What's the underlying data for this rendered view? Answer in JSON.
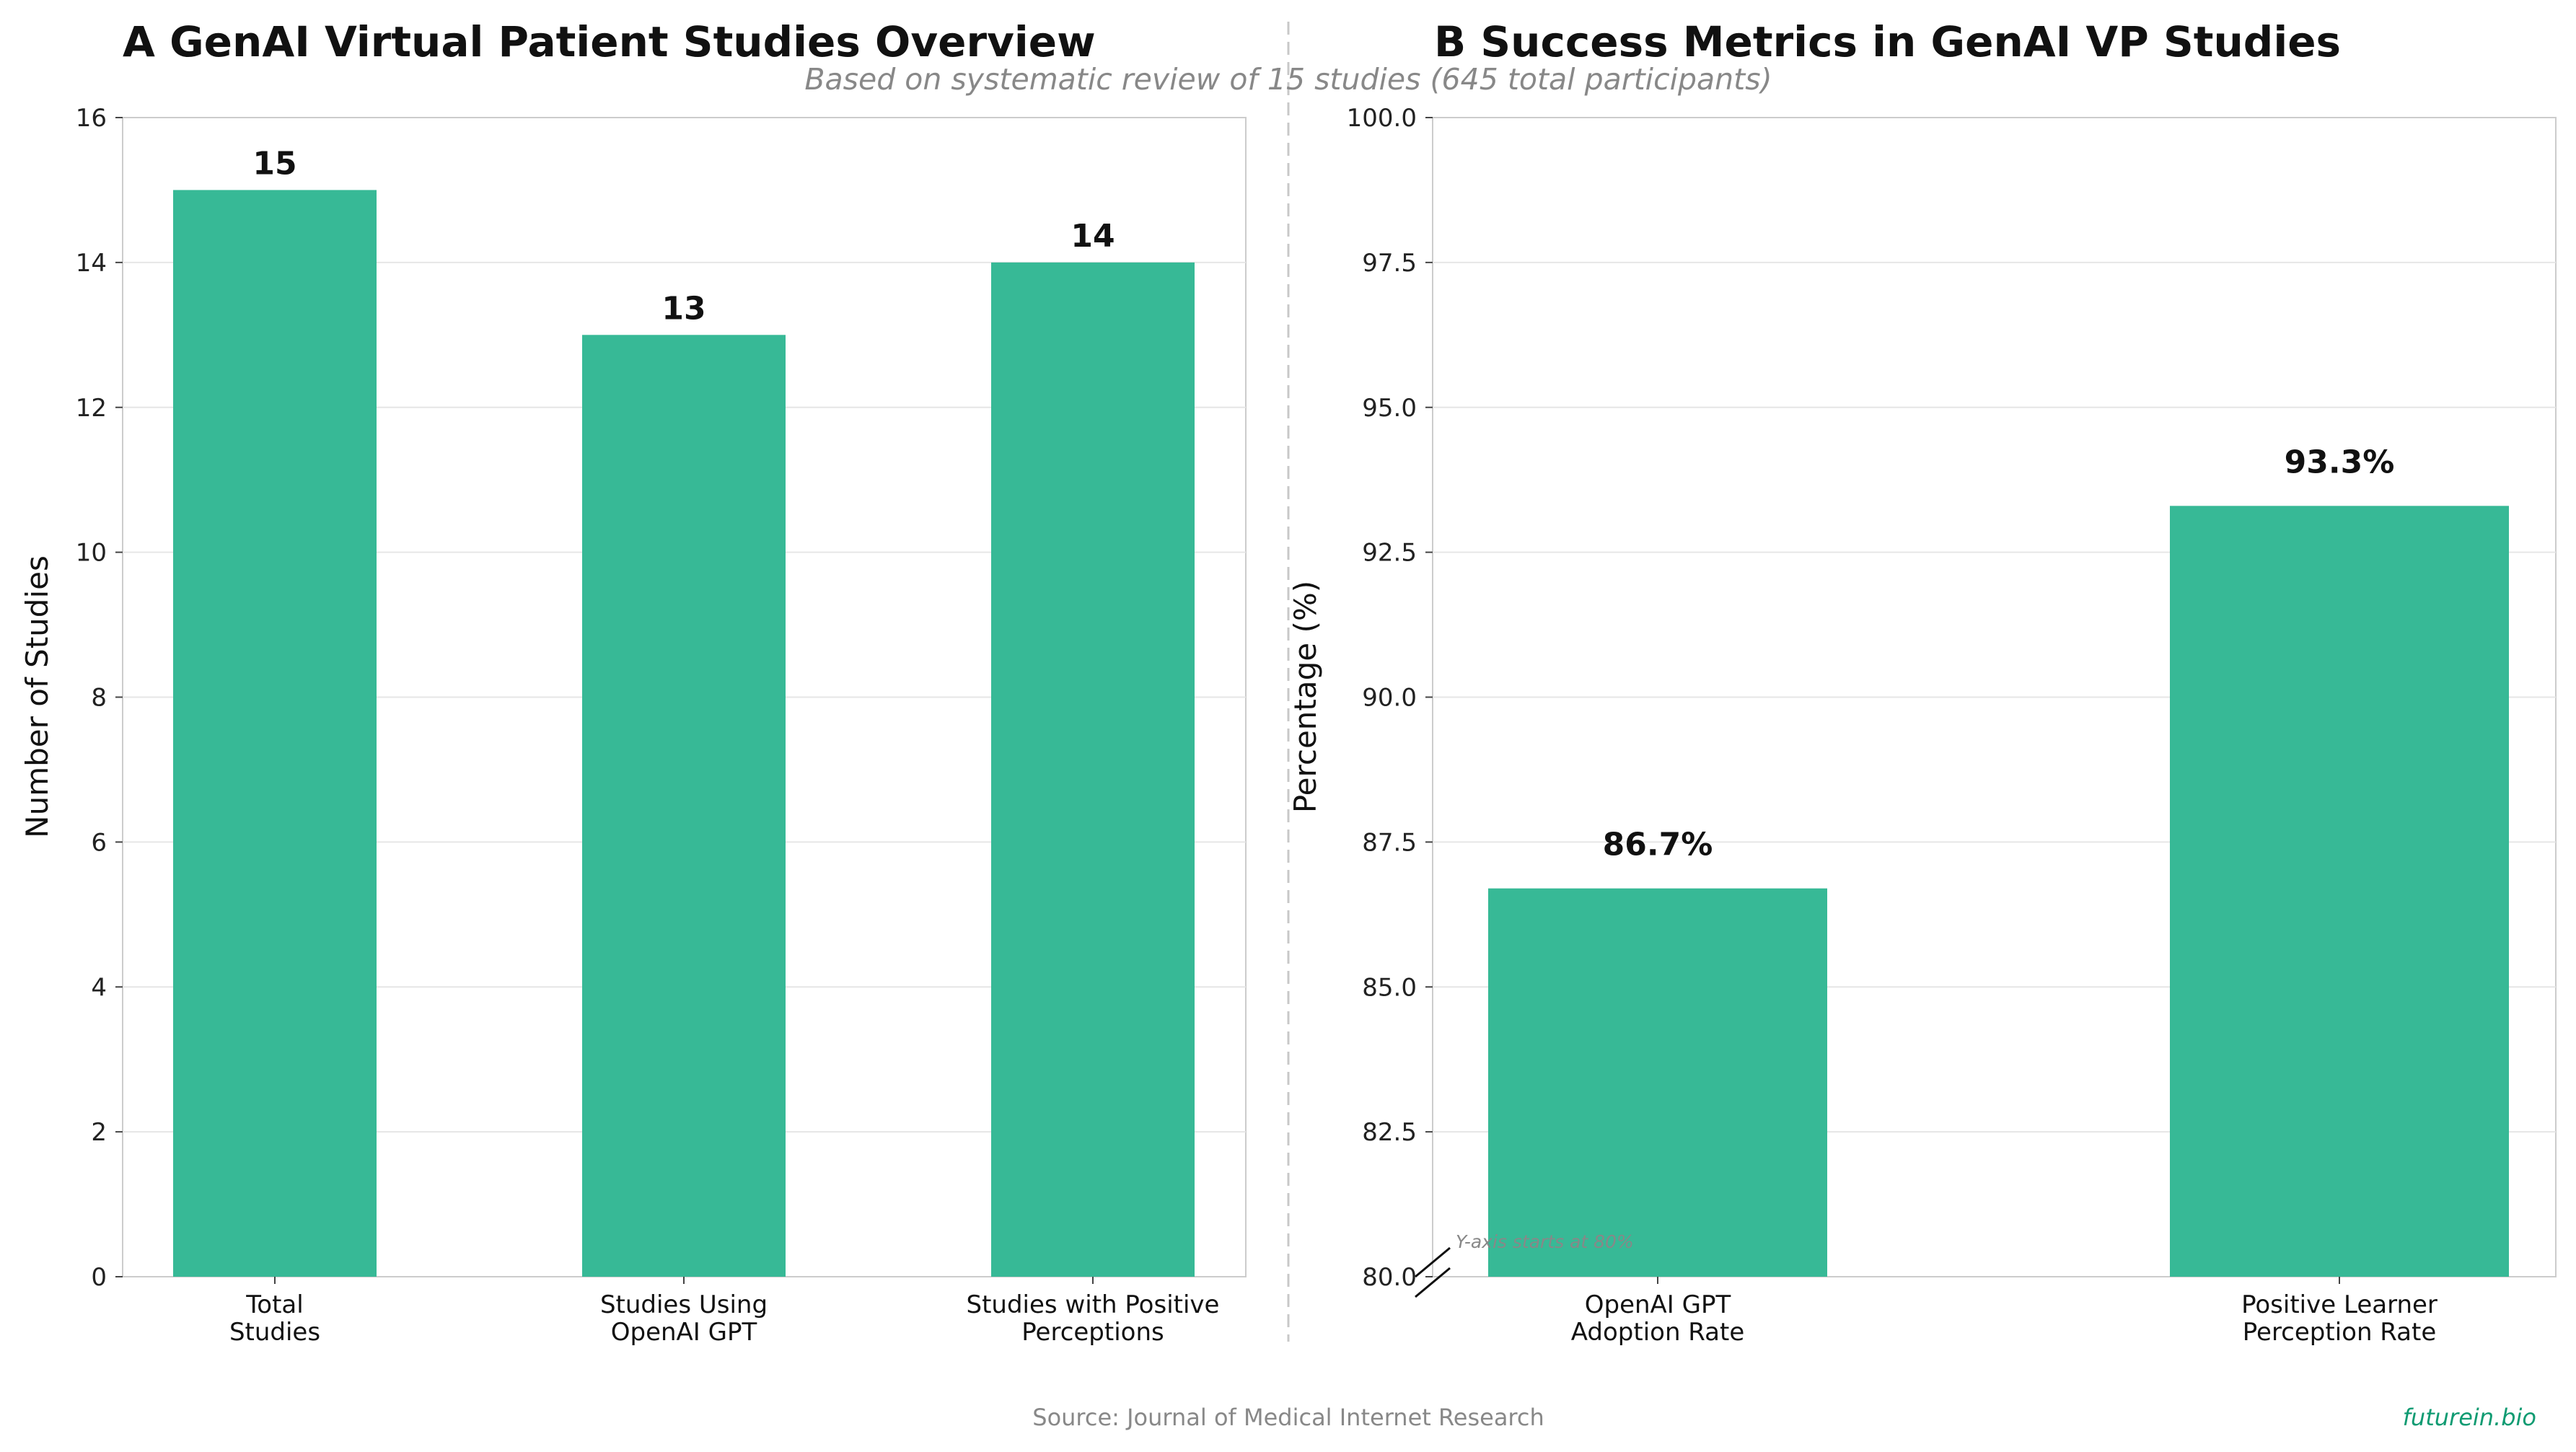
{
  "subtitle": "Based on systematic review of 15 studies (645 total participants)",
  "source": "Source: Journal of Medical Internet Research",
  "brand": "futurein.bio",
  "colors": {
    "bar": "#37b996",
    "brand": "#0f9b72",
    "grid": "#e6e6e6",
    "spine": "#cccccc"
  },
  "chart_data": [
    {
      "type": "bar",
      "panel": "A",
      "title": "A  GenAI Virtual Patient Studies Overview",
      "categories": [
        [
          "Total",
          "Studies"
        ],
        [
          "Studies Using",
          "OpenAI GPT"
        ],
        [
          "Studies with Positive",
          "Perceptions"
        ]
      ],
      "values": [
        15,
        13,
        14
      ],
      "value_labels": [
        "15",
        "13",
        "14"
      ],
      "xlabel": "",
      "ylabel": "Number of Studies",
      "ylim": [
        0,
        16
      ],
      "yticks": [
        0,
        2,
        4,
        6,
        8,
        10,
        12,
        14,
        16
      ],
      "ytick_labels": [
        "0",
        "2",
        "4",
        "6",
        "8",
        "10",
        "12",
        "14",
        "16"
      ],
      "grid": "y"
    },
    {
      "type": "bar",
      "panel": "B",
      "title": "B  Success Metrics in GenAI VP Studies",
      "categories": [
        [
          "OpenAI GPT",
          "Adoption Rate"
        ],
        [
          "Positive Learner",
          "Perception Rate"
        ]
      ],
      "values": [
        86.7,
        93.3
      ],
      "value_labels": [
        "86.7%",
        "93.3%"
      ],
      "xlabel": "",
      "ylabel": "Percentage (%)",
      "ylim": [
        80,
        100
      ],
      "yticks": [
        80,
        82.5,
        85,
        87.5,
        90,
        92.5,
        95,
        97.5,
        100
      ],
      "ytick_labels": [
        "80.0",
        "82.5",
        "85.0",
        "87.5",
        "90.0",
        "92.5",
        "95.0",
        "97.5",
        "100.0"
      ],
      "grid": "y",
      "axis_break_note": "Y-axis starts at 80%"
    }
  ]
}
